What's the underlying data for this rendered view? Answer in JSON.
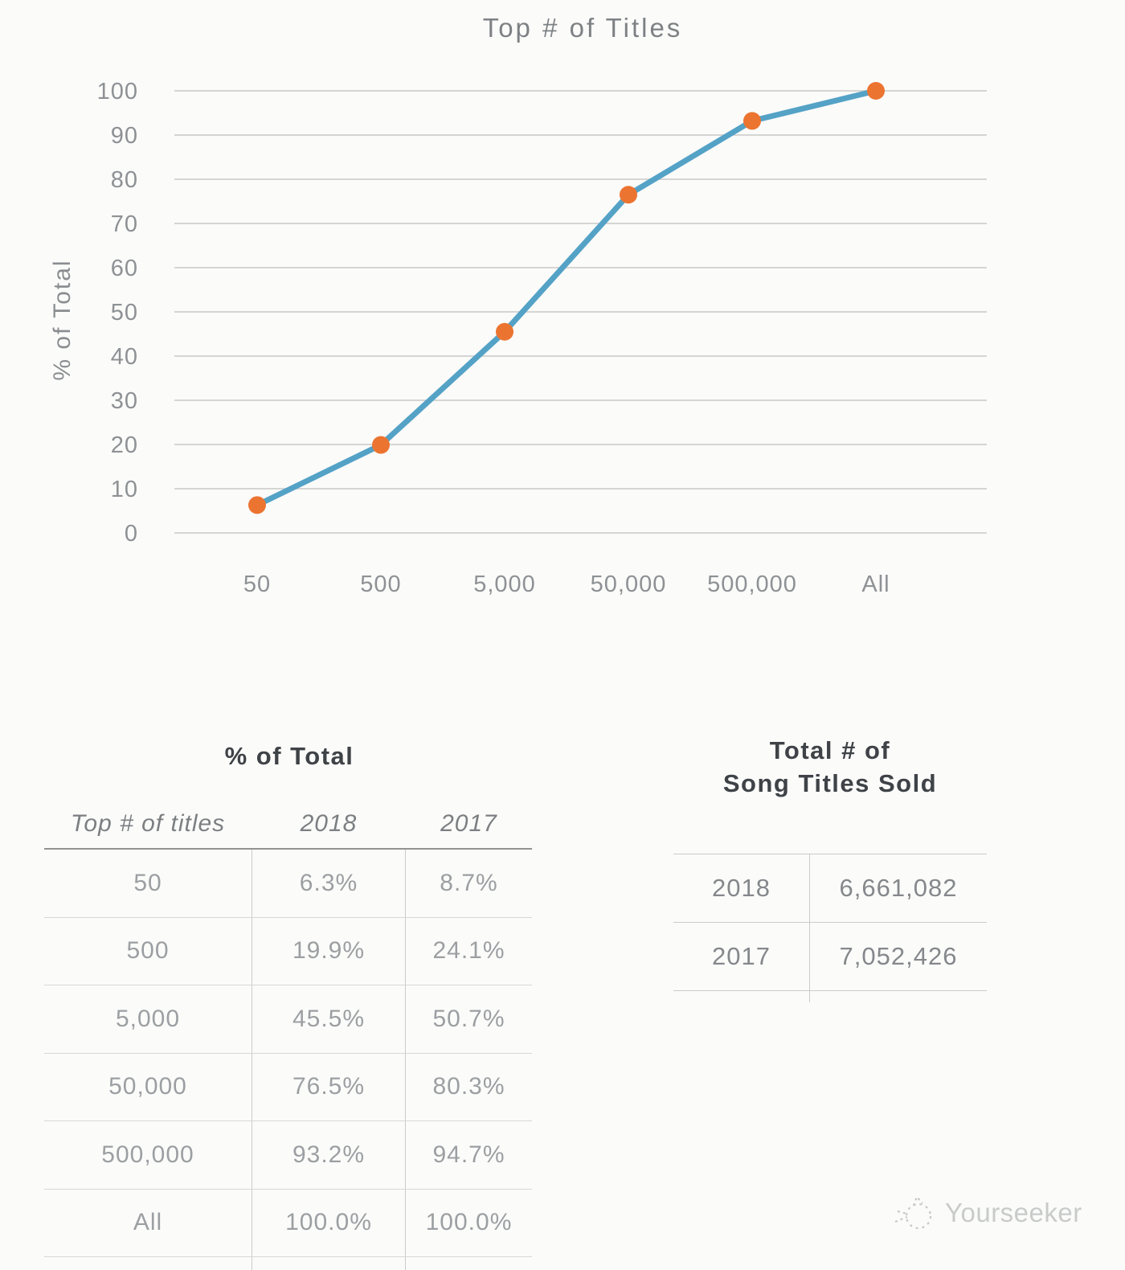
{
  "page": {
    "background": "#FBFBFA"
  },
  "chart_data": {
    "type": "line",
    "title": "Top # of Titles",
    "ylabel": "% of Total",
    "xlabel": "",
    "categories": [
      "50",
      "500",
      "5,000",
      "50,000",
      "500,000",
      "All"
    ],
    "series": [
      {
        "name": "2018",
        "values": [
          6.3,
          19.9,
          45.5,
          76.5,
          93.2,
          100.0
        ]
      }
    ],
    "ylim": [
      0,
      100
    ],
    "ytick_step": 10,
    "grid": true,
    "legend_position": "none",
    "line_color": "#54A2C6",
    "marker_color": "#EC7431",
    "gridline_color": "#D5D5D3"
  },
  "tables": {
    "percent_of_total": {
      "title": "% of Total",
      "columns": [
        "Top # of titles",
        "2018",
        "2017"
      ],
      "rows": [
        [
          "50",
          "6.3%",
          "8.7%"
        ],
        [
          "500",
          "19.9%",
          "24.1%"
        ],
        [
          "5,000",
          "45.5%",
          "50.7%"
        ],
        [
          "50,000",
          "76.5%",
          "80.3%"
        ],
        [
          "500,000",
          "93.2%",
          "94.7%"
        ],
        [
          "All",
          "100.0%",
          "100.0%"
        ]
      ]
    },
    "titles_sold": {
      "title_line1": "Total # of",
      "title_line2": "Song Titles Sold",
      "rows": [
        [
          "2018",
          "6,661,082"
        ],
        [
          "2017",
          "7,052,426"
        ]
      ]
    }
  },
  "footer": {
    "brand": "Yourseeker"
  }
}
